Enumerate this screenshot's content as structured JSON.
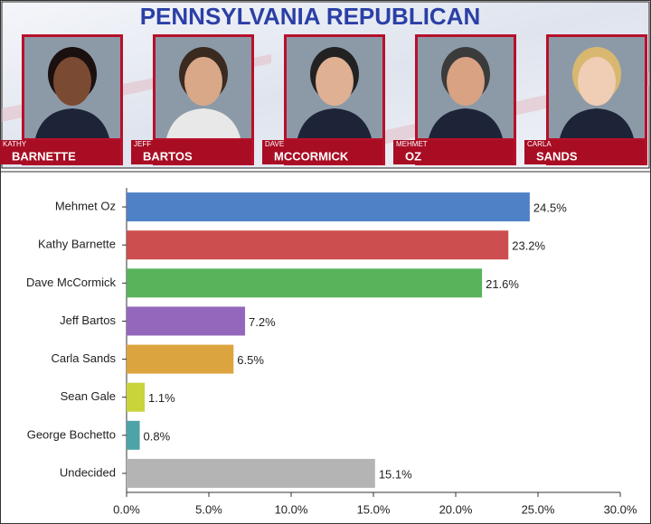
{
  "header": {
    "title": "PENNSYLVANIA REPUBLICAN",
    "candidates": [
      {
        "first": "KATHY",
        "last": "BARNETTE"
      },
      {
        "first": "JEFF",
        "last": "BARTOS"
      },
      {
        "first": "DAVE",
        "last": "MCCORMICK"
      },
      {
        "first": "MEHMET",
        "last": "OZ"
      },
      {
        "first": "CARLA",
        "last": "SANDS"
      }
    ]
  },
  "chart_data": {
    "type": "bar",
    "orientation": "horizontal",
    "categories": [
      "Mehmet Oz",
      "Kathy Barnette",
      "Dave McCormick",
      "Jeff Bartos",
      "Carla Sands",
      "Sean Gale",
      "George Bochetto",
      "Undecided"
    ],
    "values": [
      24.5,
      23.2,
      21.6,
      7.2,
      6.5,
      1.1,
      0.8,
      15.1
    ],
    "value_labels": [
      "24.5%",
      "23.2%",
      "21.6%",
      "7.2%",
      "6.5%",
      "1.1%",
      "0.8%",
      "15.1%"
    ],
    "colors": [
      "#4f81c7",
      "#cc4e4e",
      "#59b35a",
      "#9467bd",
      "#dca43f",
      "#c8d43a",
      "#4ea3a8",
      "#b4b4b4"
    ],
    "xlim": [
      0,
      30
    ],
    "xticks": [
      {
        "value": 0,
        "label": "0.0%"
      },
      {
        "value": 5,
        "label": "5.0%"
      },
      {
        "value": 10,
        "label": "10.0%"
      },
      {
        "value": 15,
        "label": "15.0%"
      },
      {
        "value": 20,
        "label": "20.0%"
      },
      {
        "value": 25,
        "label": "25.0%"
      },
      {
        "value": 30,
        "label": "30.0%"
      }
    ]
  }
}
